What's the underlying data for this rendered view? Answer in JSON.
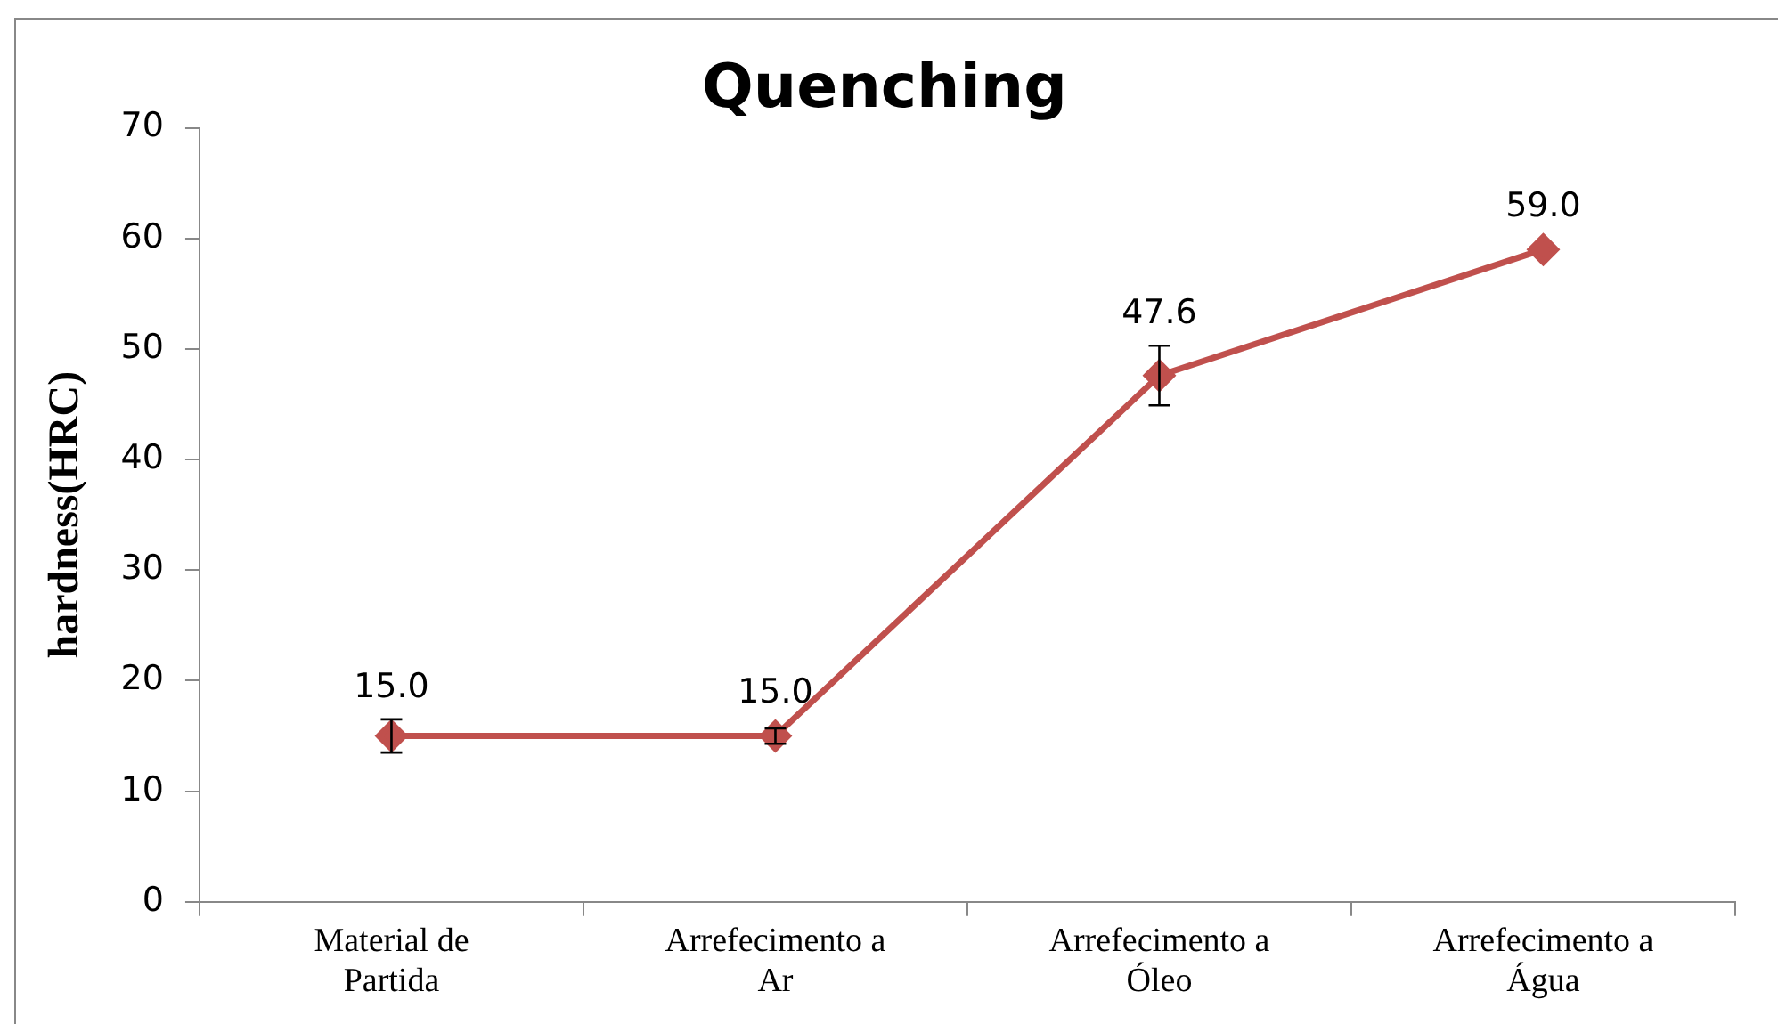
{
  "chart_data": {
    "type": "line",
    "title": "Quenching",
    "ylabel": "hardness(HRC)",
    "categories": [
      "Material de Partida",
      "Arrefecimento a Ar",
      "Arrefecimento a Óleo",
      "Arrefecimento a Água"
    ],
    "series": [
      {
        "color": "#c0504d",
        "values": [
          15.0,
          15.0,
          47.6,
          59.0
        ],
        "errors": [
          1.5,
          0.7,
          2.7,
          null
        ],
        "value_labels": [
          "15.0",
          "15.0",
          "47.6",
          "59.0"
        ]
      }
    ],
    "ylim": [
      0,
      70
    ],
    "yticks": [
      0,
      10,
      20,
      30,
      40,
      50,
      60,
      70
    ],
    "grid": false,
    "legend": false,
    "marker": "diamond",
    "line_style": "solid"
  }
}
